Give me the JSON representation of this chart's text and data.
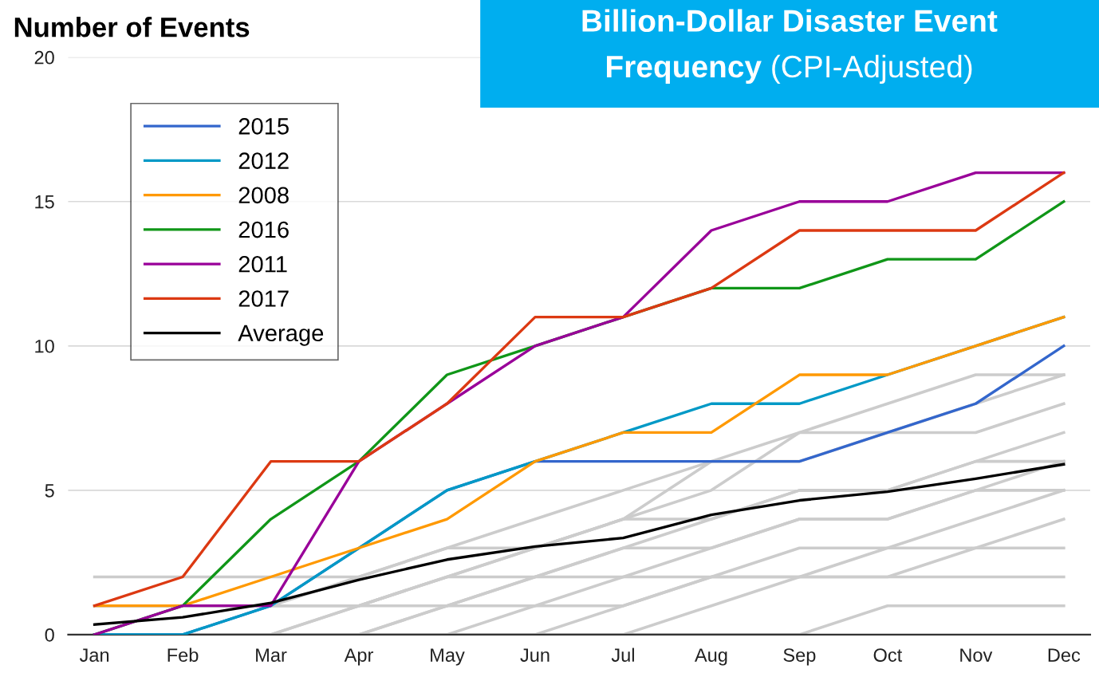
{
  "chart_data": {
    "type": "line",
    "title": "Billion-Dollar Disaster Event Frequency",
    "subtitle": "(CPI-Adjusted)",
    "ylabel": "Number of Events",
    "categories": [
      "Jan",
      "Feb",
      "Mar",
      "Apr",
      "May",
      "Jun",
      "Jul",
      "Aug",
      "Sep",
      "Oct",
      "Nov",
      "Dec"
    ],
    "ylim": [
      0,
      20
    ],
    "yticks": [
      0,
      5,
      10,
      15,
      20
    ],
    "grid": "y",
    "legend": "top left",
    "marker": "none",
    "line_style": "solid",
    "series": [
      {
        "color": "#cccccc",
        "values": [
          0,
          0,
          0,
          1,
          2,
          3,
          4,
          5,
          7,
          8,
          9,
          9
        ]
      },
      {
        "color": "#cccccc",
        "values": [
          1,
          1,
          1,
          1,
          2,
          3,
          4,
          6,
          7,
          7,
          8,
          9
        ]
      },
      {
        "color": "#cccccc",
        "values": [
          1,
          1,
          1,
          2,
          3,
          4,
          5,
          6,
          6,
          7,
          7,
          8
        ]
      },
      {
        "color": "#cccccc",
        "values": [
          0,
          0,
          0,
          0,
          1,
          2,
          3,
          4,
          5,
          5,
          6,
          7
        ]
      },
      {
        "color": "#cccccc",
        "values": [
          2,
          2,
          2,
          2,
          3,
          3,
          4,
          4,
          5,
          5,
          6,
          6
        ]
      },
      {
        "color": "#cccccc",
        "values": [
          0,
          0,
          0,
          1,
          1,
          2,
          2,
          3,
          4,
          4,
          5,
          6
        ]
      },
      {
        "color": "#cccccc",
        "values": [
          0,
          0,
          0,
          0,
          0,
          0,
          1,
          2,
          3,
          3,
          4,
          5
        ]
      },
      {
        "color": "#cccccc",
        "values": [
          1,
          1,
          1,
          1,
          2,
          2,
          3,
          3,
          4,
          4,
          5,
          5
        ]
      },
      {
        "color": "#cccccc",
        "values": [
          0,
          0,
          0,
          0,
          1,
          1,
          2,
          2,
          2,
          3,
          3,
          4
        ]
      },
      {
        "color": "#cccccc",
        "values": [
          0,
          0,
          0,
          0,
          0,
          0,
          0,
          1,
          2,
          2,
          2,
          2
        ]
      },
      {
        "color": "#cccccc",
        "values": [
          0,
          0,
          0,
          0,
          0,
          1,
          1,
          2,
          2,
          2,
          3,
          3
        ]
      },
      {
        "color": "#cccccc",
        "values": [
          0,
          0,
          0,
          0,
          0,
          0,
          0,
          0,
          0,
          1,
          1,
          1
        ]
      },
      {
        "name": "2015",
        "color": "#3366cc",
        "values": [
          0,
          0,
          1,
          3,
          5,
          6,
          6,
          6,
          6,
          7,
          8,
          10
        ]
      },
      {
        "name": "2012",
        "color": "#0099c6",
        "values": [
          0,
          0,
          1,
          3,
          5,
          6,
          7,
          8,
          8,
          9,
          10,
          11
        ]
      },
      {
        "name": "2008",
        "color": "#ff9900",
        "values": [
          1,
          1,
          2,
          3,
          4,
          6,
          7,
          7,
          9,
          9,
          10,
          11
        ]
      },
      {
        "name": "2016",
        "color": "#109618",
        "values": [
          0,
          1,
          4,
          6,
          9,
          10,
          11,
          12,
          12,
          13,
          13,
          15
        ]
      },
      {
        "name": "2011",
        "color": "#990099",
        "values": [
          0,
          1,
          1,
          6,
          8,
          10,
          11,
          14,
          15,
          15,
          16,
          16
        ]
      },
      {
        "name": "2017",
        "color": "#dc3912",
        "values": [
          1,
          2,
          6,
          6,
          8,
          11,
          11,
          12,
          14,
          14,
          14,
          16
        ]
      },
      {
        "name": "Average",
        "color": "#000000",
        "values": [
          0.35,
          0.6,
          1.1,
          1.9,
          2.6,
          3.05,
          3.35,
          4.15,
          4.65,
          4.95,
          5.4,
          5.9
        ]
      }
    ]
  }
}
